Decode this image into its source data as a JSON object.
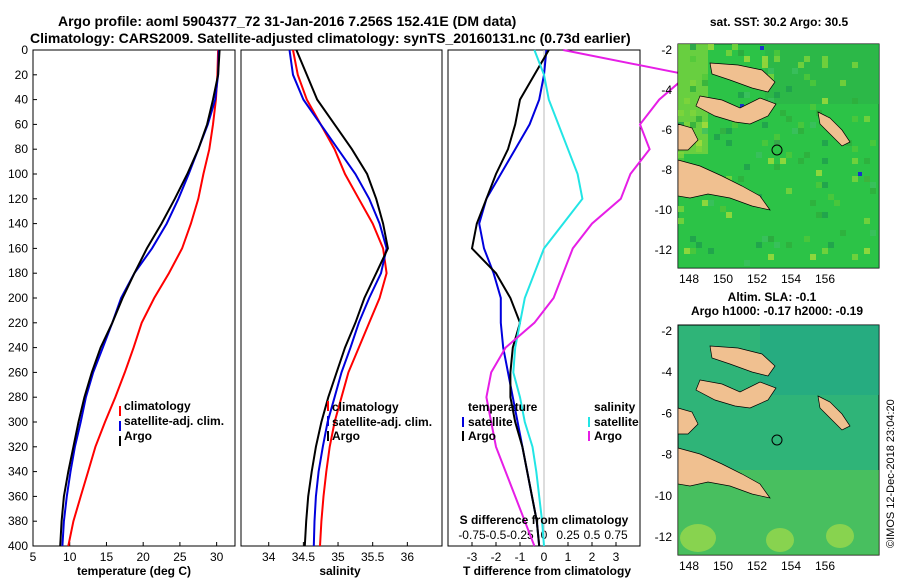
{
  "header": {
    "title_line1": "Argo profile: aoml 5904377_72 31-Jan-2016 7.256S 152.41E (DM data)",
    "title_line2": "Climatology: CARS2009. Satellite-adjusted climatology: synTS_20160131.nc (0.73d earlier)"
  },
  "colors": {
    "climatology": "#ff0000",
    "satellite": "#0000dd",
    "argo": "#000000",
    "sat_salinity": "#22e5e5",
    "sal_clim": "#e61ee6"
  },
  "chart_data": [
    {
      "id": "temperature",
      "type": "line",
      "xlabel": "temperature (deg C)",
      "ylabel": "",
      "xlim": [
        5,
        32.5
      ],
      "ylim": [
        400,
        0
      ],
      "xticks": [
        "5",
        "10",
        "15",
        "20",
        "25",
        "30"
      ],
      "yticks": [
        "0",
        "20",
        "40",
        "60",
        "80",
        "100",
        "120",
        "140",
        "160",
        "180",
        "200",
        "220",
        "240",
        "260",
        "280",
        "300",
        "320",
        "340",
        "360",
        "380",
        "400"
      ],
      "legend": [
        "climatology",
        "satellite-adj. clim.",
        "Argo"
      ],
      "series": [
        {
          "name": "climatology",
          "x": [
            30.2,
            30.1,
            29.9,
            29.5,
            29.0,
            28.2,
            27.5,
            26.5,
            25.3,
            23.5,
            21.5,
            19.8,
            18.7,
            17.5,
            16.2,
            14.8,
            13.5,
            12.5,
            11.5,
            10.5,
            9.8
          ],
          "y": [
            0,
            20,
            40,
            60,
            80,
            100,
            120,
            140,
            160,
            180,
            200,
            220,
            240,
            260,
            280,
            300,
            320,
            340,
            360,
            380,
            400
          ]
        },
        {
          "name": "satellite-adj. clim.",
          "x": [
            30.3,
            30.2,
            29.8,
            28.8,
            27.5,
            26.2,
            24.8,
            23.2,
            21.2,
            18.8,
            17.0,
            15.8,
            14.5,
            13.2,
            12.2,
            11.5,
            10.7,
            10.1,
            9.6,
            9.2,
            9.0
          ],
          "y": [
            0,
            20,
            40,
            60,
            80,
            100,
            120,
            140,
            160,
            180,
            200,
            220,
            240,
            260,
            280,
            300,
            320,
            340,
            360,
            380,
            400
          ]
        },
        {
          "name": "Argo",
          "x": [
            30.4,
            30.2,
            29.5,
            28.7,
            27.5,
            26.0,
            24.3,
            22.5,
            20.5,
            18.8,
            17.2,
            15.8,
            14.2,
            13.0,
            12.0,
            11.2,
            10.5,
            9.8,
            9.2,
            8.9,
            8.7
          ],
          "y": [
            0,
            20,
            40,
            60,
            80,
            100,
            120,
            140,
            160,
            180,
            200,
            220,
            240,
            260,
            280,
            300,
            320,
            340,
            360,
            380,
            400
          ]
        }
      ]
    },
    {
      "id": "salinity",
      "type": "line",
      "xlabel": "salinity",
      "ylabel": "",
      "xlim": [
        33.6,
        36.5
      ],
      "ylim": [
        400,
        0
      ],
      "xticks": [
        "34",
        "34.5",
        "35",
        "35.5",
        "36"
      ],
      "legend": [
        "climatology",
        "satellite-adj. clim.",
        "Argo"
      ],
      "series": [
        {
          "name": "climatology",
          "x": [
            34.35,
            34.42,
            34.55,
            34.75,
            34.95,
            35.1,
            35.3,
            35.5,
            35.65,
            35.7,
            35.6,
            35.45,
            35.3,
            35.15,
            35.05,
            34.95,
            34.88,
            34.83,
            34.79,
            34.76,
            34.74
          ],
          "y": [
            0,
            20,
            40,
            60,
            80,
            100,
            120,
            140,
            160,
            180,
            200,
            220,
            240,
            260,
            280,
            300,
            320,
            340,
            360,
            380,
            400
          ]
        },
        {
          "name": "satellite-adj. clim.",
          "x": [
            34.3,
            34.35,
            34.5,
            34.75,
            35.0,
            35.25,
            35.45,
            35.6,
            35.7,
            35.62,
            35.45,
            35.3,
            35.18,
            35.05,
            34.95,
            34.85,
            34.78,
            34.72,
            34.68,
            34.66,
            34.65
          ],
          "y": [
            0,
            20,
            40,
            60,
            80,
            100,
            120,
            140,
            160,
            180,
            200,
            220,
            240,
            260,
            280,
            300,
            320,
            340,
            360,
            380,
            400
          ]
        },
        {
          "name": "Argo",
          "x": [
            34.4,
            34.55,
            34.7,
            34.95,
            35.2,
            35.42,
            35.55,
            35.65,
            35.72,
            35.55,
            35.38,
            35.25,
            35.1,
            34.98,
            34.86,
            34.76,
            34.68,
            34.62,
            34.57,
            34.54,
            34.52
          ],
          "y": [
            0,
            20,
            40,
            60,
            80,
            100,
            120,
            140,
            160,
            180,
            200,
            220,
            240,
            260,
            280,
            300,
            320,
            340,
            360,
            380,
            400
          ]
        }
      ]
    },
    {
      "id": "differences",
      "type": "line",
      "xlabel": "T difference from climatology",
      "xlabel_top": "S difference from climatology",
      "xlim": [
        -4,
        4
      ],
      "ylim": [
        400,
        0
      ],
      "xticks": [
        "-3",
        "-2",
        "-1",
        "0",
        "1",
        "2",
        "3"
      ],
      "xticks_top": [
        "-0.75",
        "-0.5",
        "-0.25",
        "0",
        "0.25",
        "0.5",
        "0.75"
      ],
      "legend_left": {
        "title": "temperature",
        "items": [
          "satellite",
          "Argo"
        ]
      },
      "legend_right": {
        "title": "salinity",
        "items": [
          "satellite",
          "Argo"
        ]
      },
      "series": [
        {
          "name": "temperature satellite",
          "x": [
            0.1,
            0.0,
            -0.2,
            -0.6,
            -1.2,
            -1.8,
            -2.4,
            -2.7,
            -2.5,
            -2.1,
            -1.8,
            -1.8,
            -1.7,
            -1.5,
            -1.3,
            -1.1,
            -0.9,
            -0.7,
            -0.5,
            -0.3,
            -0.2
          ],
          "y": [
            0,
            20,
            40,
            60,
            80,
            100,
            120,
            140,
            160,
            180,
            200,
            220,
            240,
            260,
            280,
            300,
            320,
            340,
            360,
            380,
            400
          ]
        },
        {
          "name": "temperature Argo",
          "x": [
            0.2,
            -0.4,
            -1.0,
            -1.2,
            -1.5,
            -2.0,
            -2.4,
            -2.8,
            -3.0,
            -2.0,
            -1.4,
            -1.0,
            -1.3,
            -1.4,
            -1.4,
            -1.2,
            -0.9,
            -0.7,
            -0.5,
            -0.3,
            -0.2
          ],
          "y": [
            0,
            20,
            40,
            60,
            80,
            100,
            120,
            140,
            160,
            180,
            200,
            220,
            240,
            260,
            280,
            300,
            320,
            340,
            360,
            380,
            400
          ]
        },
        {
          "name": "salinity satellite",
          "x": [
            -0.1,
            0.0,
            0.05,
            0.15,
            0.25,
            0.35,
            0.4,
            0.2,
            0.0,
            -0.1,
            -0.2,
            -0.25,
            -0.3,
            -0.32,
            -0.25,
            -0.2,
            -0.12,
            -0.08,
            -0.05,
            -0.02,
            0.0
          ],
          "y": [
            0,
            20,
            40,
            60,
            80,
            100,
            120,
            140,
            160,
            180,
            200,
            220,
            240,
            260,
            280,
            300,
            320,
            340,
            360,
            380,
            400
          ]
        },
        {
          "name": "salinity Argo",
          "x": [
            0.2,
            1.5,
            1.2,
            1.0,
            1.1,
            0.9,
            0.8,
            0.5,
            0.3,
            0.2,
            0.1,
            -0.1,
            -0.4,
            -0.55,
            -0.6,
            -0.55,
            -0.5,
            -0.4,
            -0.3,
            -0.2,
            -0.1
          ],
          "y": [
            0,
            20,
            40,
            60,
            80,
            100,
            120,
            140,
            160,
            180,
            200,
            220,
            240,
            260,
            280,
            300,
            320,
            340,
            360,
            380,
            400
          ]
        }
      ]
    }
  ],
  "map_sst": {
    "title": "sat. SST: 30.2 Argo: 30.5",
    "xticks": [
      "148",
      "150",
      "152",
      "154",
      "156"
    ],
    "yticks": [
      "-2",
      "-4",
      "-6",
      "-8",
      "-10",
      "-12"
    ]
  },
  "map_sla": {
    "title_line1": "Altim. SLA: -0.1",
    "title_line2": "Argo h1000: -0.17 h2000: -0.19",
    "xticks": [
      "148",
      "150",
      "152",
      "154",
      "156"
    ],
    "yticks": [
      "-2",
      "-4",
      "-6",
      "-8",
      "-10",
      "-12"
    ]
  },
  "stamp": "©IMOS 12-Dec-2018 23:04:20"
}
